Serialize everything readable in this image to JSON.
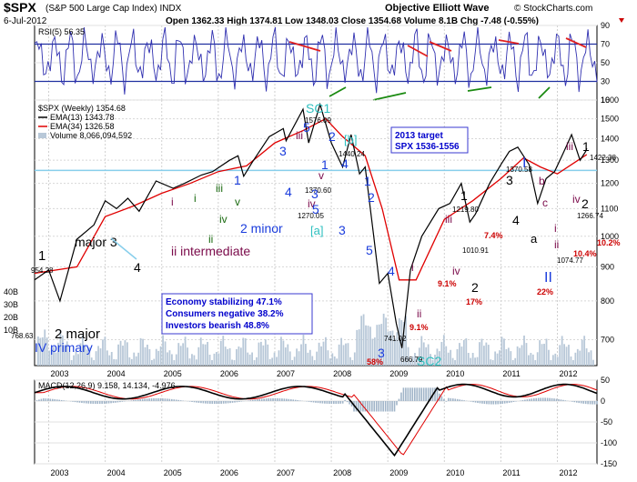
{
  "header": {
    "title": "$SPX",
    "subtitle": "(S&P 500 Large Cap Index) INDX",
    "watermark": "Objective Elliott Wave",
    "copyright": "© StockCharts.com",
    "date": "6-Jul-2012",
    "quote": "Open 1362.33  High 1374.81  Low 1348.03  Close 1354.68  Volume 8.1B  Chg -7.48 (-0.55%)"
  },
  "colors": {
    "price": "#000000",
    "ema13": "#000000",
    "ema34": "#e00000",
    "volume": "#b8c8d8",
    "rsi": "#3030b0",
    "macd_bar": "#a0b4c8",
    "support": "#87ceeb",
    "wave_blue": "#1a3cdc",
    "wave_purple": "#7a0a4a",
    "wave_green": "#1a6a10",
    "pct_red": "#cc0000",
    "box_border": "#3a3ad0",
    "box_text": "#0000cc",
    "sc_label": "#30c0c0"
  },
  "chart_data": [
    {
      "type": "line",
      "panel": "RSI",
      "title": "RSI(5) 56.35",
      "ylim": [
        10,
        90
      ],
      "yticks": [
        10,
        30,
        50,
        70,
        90
      ],
      "grid": true,
      "levels": [
        30,
        70
      ]
    },
    {
      "type": "line",
      "panel": "Price",
      "legend": [
        "$SPX (Weekly) 1354.68",
        "EMA(13) 1343.78",
        "EMA(34) 1326.58",
        "Volume 8,066,094,592"
      ],
      "legend_placement": "top-left",
      "xlim": [
        2002.75,
        2012.7
      ],
      "xticks": [
        "2003",
        "2004",
        "2005",
        "2006",
        "2007",
        "2008",
        "2009",
        "2010",
        "2011",
        "2012"
      ],
      "ylim": [
        640,
        1600
      ],
      "yticks": [
        700,
        800,
        900,
        1000,
        1100,
        1200,
        1300,
        1400,
        1500,
        1600
      ],
      "volume_ticks": [
        "40B",
        "30B",
        "20B",
        "10B"
      ],
      "grid": true,
      "support_line": 1255,
      "series": [
        {
          "name": "$SPX",
          "x": [
            2002.75,
            2003.0,
            2003.2,
            2003.5,
            2003.8,
            2004.0,
            2004.2,
            2004.4,
            2004.6,
            2004.9,
            2005.2,
            2005.4,
            2005.7,
            2005.9,
            2006.2,
            2006.35,
            2006.45,
            2006.6,
            2006.9,
            2007.15,
            2007.2,
            2007.5,
            2007.6,
            2007.8,
            2008.0,
            2008.2,
            2008.35,
            2008.5,
            2008.6,
            2008.75,
            2008.85,
            2009.0,
            2009.15,
            2009.25,
            2009.4,
            2009.6,
            2009.9,
            2010.1,
            2010.3,
            2010.45,
            2010.55,
            2010.8,
            2011.0,
            2011.15,
            2011.3,
            2011.5,
            2011.65,
            2011.8,
            2011.95,
            2012.1,
            2012.25,
            2012.4,
            2012.5,
            2012.52
          ],
          "values": [
            860,
            890,
            800,
            990,
            1040,
            1130,
            1100,
            1140,
            1090,
            1210,
            1180,
            1200,
            1235,
            1250,
            1300,
            1320,
            1230,
            1290,
            1410,
            1450,
            1390,
            1550,
            1380,
            1576,
            1380,
            1270,
            1420,
            1240,
            1270,
            1000,
            850,
            880,
            740,
            680,
            890,
            1000,
            1100,
            1120,
            1200,
            1050,
            1080,
            1200,
            1280,
            1340,
            1360,
            1280,
            1120,
            1220,
            1250,
            1330,
            1420,
            1300,
            1340,
            1355
          ]
        },
        {
          "name": "EMA(34)",
          "x": [
            2002.75,
            2003.5,
            2004.0,
            2004.5,
            2005.0,
            2005.5,
            2006.0,
            2006.5,
            2007.0,
            2007.5,
            2007.9,
            2008.2,
            2008.6,
            2008.9,
            2009.2,
            2009.5,
            2010.0,
            2010.5,
            2011.0,
            2011.4,
            2011.7,
            2012.0,
            2012.52
          ],
          "values": [
            880,
            900,
            1070,
            1110,
            1160,
            1200,
            1250,
            1275,
            1380,
            1440,
            1500,
            1410,
            1320,
            1100,
            860,
            860,
            1060,
            1130,
            1220,
            1310,
            1270,
            1240,
            1326
          ]
        }
      ],
      "annotations": {
        "price_labels": [
          "954.28",
          "768.63",
          "1576.09",
          "1440.24",
          "1370.60",
          "1270.05",
          "741.02",
          "666.79",
          "1219.80",
          "1010.91",
          "1370.58",
          "1422.38",
          "1074.77",
          "1266.74"
        ],
        "waves": [
          {
            "text": "1",
            "color": "wave_black"
          },
          {
            "text": "2 major",
            "color": "wave_black"
          },
          {
            "text": "IV primary",
            "color": "wave_blue"
          },
          {
            "text": "major 3",
            "color": "wave_black"
          },
          {
            "text": "4",
            "color": "wave_black"
          },
          {
            "text": "i",
            "color": "wave_purple"
          },
          {
            "text": "ii intermediate",
            "color": "wave_purple"
          },
          {
            "text": "i",
            "color": "wave_green"
          },
          {
            "text": "ii",
            "color": "wave_green"
          },
          {
            "text": "iii",
            "color": "wave_green"
          },
          {
            "text": "iv",
            "color": "wave_green"
          },
          {
            "text": "v",
            "color": "wave_green"
          },
          {
            "text": "1",
            "color": "wave_blue"
          },
          {
            "text": "2 minor",
            "color": "wave_blue"
          },
          {
            "text": "3",
            "color": "wave_blue"
          },
          {
            "text": "4",
            "color": "wave_blue"
          },
          {
            "text": "5",
            "color": "wave_blue"
          },
          {
            "text": "iii",
            "color": "wave_purple"
          },
          {
            "text": "iv",
            "color": "wave_purple"
          },
          {
            "text": "v",
            "color": "wave_purple"
          },
          {
            "text": "SC1",
            "color": "sc_label"
          },
          {
            "text": "1",
            "color": "wave_blue"
          },
          {
            "text": "2",
            "color": "wave_blue"
          },
          {
            "text": "3",
            "color": "wave_blue"
          },
          {
            "text": "4",
            "color": "wave_blue"
          },
          {
            "text": "5",
            "color": "wave_blue"
          },
          {
            "text": "[b]",
            "color": "sc_label"
          },
          {
            "text": "[a]",
            "color": "sc_label"
          },
          {
            "text": "1",
            "color": "wave_blue"
          },
          {
            "text": "2",
            "color": "wave_blue"
          },
          {
            "text": "3",
            "color": "wave_blue"
          },
          {
            "text": "4",
            "color": "wave_blue"
          },
          {
            "text": "5",
            "color": "wave_blue"
          },
          {
            "text": "3",
            "color": "wave_blue"
          },
          {
            "text": "SC2",
            "color": "sc_label"
          },
          {
            "text": "i",
            "color": "wave_purple"
          },
          {
            "text": "ii",
            "color": "wave_purple"
          },
          {
            "text": "iii",
            "color": "wave_purple"
          },
          {
            "text": "iv",
            "color": "wave_purple"
          },
          {
            "text": "1",
            "color": "wave_black"
          },
          {
            "text": "2",
            "color": "wave_black"
          },
          {
            "text": "3",
            "color": "wave_black"
          },
          {
            "text": "4",
            "color": "wave_black"
          },
          {
            "text": "I",
            "color": "wave_blue"
          },
          {
            "text": "II",
            "color": "wave_blue"
          },
          {
            "text": "a",
            "color": "wave_black"
          },
          {
            "text": "b",
            "color": "wave_purple"
          },
          {
            "text": "c",
            "color": "wave_purple"
          },
          {
            "text": "i",
            "color": "wave_purple"
          },
          {
            "text": "ii",
            "color": "wave_purple"
          },
          {
            "text": "iii",
            "color": "wave_purple"
          },
          {
            "text": "iv",
            "color": "wave_purple"
          },
          {
            "text": "1",
            "color": "wave_black"
          },
          {
            "text": "2",
            "color": "wave_black"
          }
        ],
        "percent_labels": [
          "58%",
          "9.1%",
          "9.1%",
          "17%",
          "7.4%",
          "22%",
          "10.4%",
          "10.2%"
        ],
        "target_box": [
          "2013 target",
          "SPX 1536-1556"
        ],
        "info_box": [
          "Economy stabilizing 47.1%",
          "Consumers negative 38.2%",
          "Investors bearish 48.8%"
        ]
      }
    },
    {
      "type": "line",
      "panel": "MACD",
      "title": "MACD(12,26,9) 9.158, 14.134, -4.976",
      "ylim": [
        -150,
        50
      ],
      "yticks": [
        -150,
        -100,
        -50,
        0,
        50
      ],
      "grid": true
    }
  ]
}
